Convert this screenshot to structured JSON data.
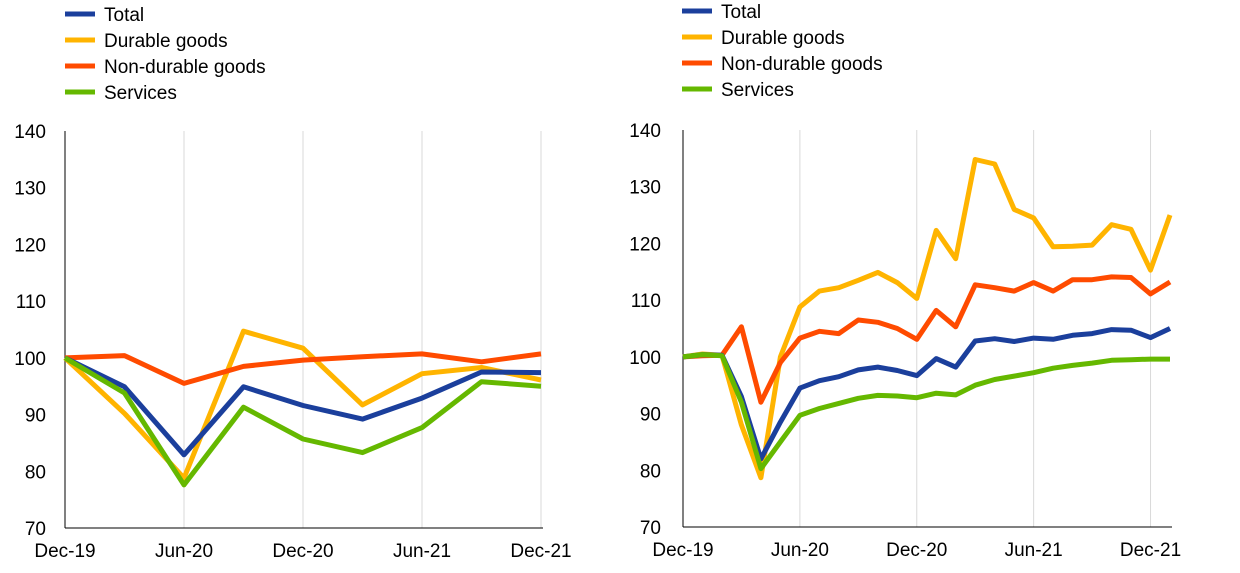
{
  "colors": {
    "total": "#1b3f9c",
    "durable": "#ffb400",
    "nondurable": "#ff4b00",
    "services": "#65b800"
  },
  "chart_data": [
    {
      "type": "line",
      "title": "",
      "xlabel": "",
      "ylabel": "",
      "ylim": [
        70,
        140
      ],
      "yticks": [
        70,
        80,
        90,
        100,
        110,
        120,
        130,
        140
      ],
      "xtick_labels": [
        "Dec-19",
        "Jun-20",
        "Dec-20",
        "Jun-21",
        "Dec-21"
      ],
      "x": [
        "Dec-19",
        "Mar-20",
        "Jun-20",
        "Sep-20",
        "Dec-20",
        "Mar-21",
        "Jun-21",
        "Sep-21",
        "Dec-21"
      ],
      "grid": "vertical",
      "legend": "top-left",
      "series": [
        {
          "key": "total",
          "name": "Total",
          "values": [
            100,
            94.9,
            82.9,
            94.9,
            91.6,
            89.2,
            92.9,
            97.5,
            97.4
          ]
        },
        {
          "key": "durable",
          "name": "Durable goods",
          "values": [
            100,
            90.2,
            78.8,
            104.7,
            101.7,
            91.7,
            97.2,
            98.3,
            96.1
          ]
        },
        {
          "key": "nondurable",
          "name": "Non-durable goods",
          "values": [
            100,
            100.4,
            95.5,
            98.5,
            99.6,
            100.2,
            100.7,
            99.3,
            100.7
          ]
        },
        {
          "key": "services",
          "name": "Services",
          "values": [
            100,
            93.8,
            77.6,
            91.3,
            85.7,
            83.3,
            87.7,
            95.8,
            95.0
          ]
        }
      ]
    },
    {
      "type": "line",
      "title": "",
      "xlabel": "",
      "ylabel": "",
      "ylim": [
        70,
        140
      ],
      "yticks": [
        70,
        80,
        90,
        100,
        110,
        120,
        130,
        140
      ],
      "xtick_labels": [
        "Dec-19",
        "Jun-20",
        "Dec-20",
        "Jun-21",
        "Dec-21"
      ],
      "x": [
        "Dec-19",
        "Jan-20",
        "Feb-20",
        "Mar-20",
        "Apr-20",
        "May-20",
        "Jun-20",
        "Jul-20",
        "Aug-20",
        "Sep-20",
        "Oct-20",
        "Nov-20",
        "Dec-20",
        "Jan-21",
        "Feb-21",
        "Mar-21",
        "Apr-21",
        "May-21",
        "Jun-21",
        "Jul-21",
        "Aug-21",
        "Sep-21",
        "Oct-21",
        "Nov-21",
        "Dec-21",
        "Jan-22"
      ],
      "grid": "vertical",
      "legend": "top-left",
      "series": [
        {
          "key": "total",
          "name": "Total",
          "values": [
            100,
            100.4,
            100.3,
            93,
            82,
            88.5,
            94.5,
            95.8,
            96.5,
            97.7,
            98.2,
            97.6,
            96.7,
            99.7,
            98.2,
            102.8,
            103.2,
            102.7,
            103.3,
            103.1,
            103.8,
            104.1,
            104.8,
            104.7,
            103.4,
            105
          ]
        },
        {
          "key": "durable",
          "name": "Durable goods",
          "values": [
            100,
            100.5,
            100.3,
            88,
            78.7,
            100,
            108.8,
            111.6,
            112.2,
            113.5,
            114.9,
            113.1,
            110.3,
            122.3,
            117.3,
            134.8,
            134,
            126,
            124.5,
            119.4,
            119.5,
            119.7,
            123.3,
            122.5,
            115.3,
            125
          ]
        },
        {
          "key": "nondurable",
          "name": "Non-durable goods",
          "values": [
            100,
            100.2,
            100.3,
            105.3,
            92,
            99,
            103.3,
            104.5,
            104.1,
            106.5,
            106.1,
            105,
            103.1,
            108.2,
            105.3,
            112.7,
            112.2,
            111.6,
            113.1,
            111.6,
            113.6,
            113.6,
            114.1,
            114,
            111.1,
            113.2
          ]
        },
        {
          "key": "services",
          "name": "Services",
          "values": [
            100,
            100.4,
            100.2,
            92,
            80.3,
            85,
            89.7,
            90.9,
            91.8,
            92.7,
            93.2,
            93.1,
            92.8,
            93.6,
            93.3,
            95,
            96,
            96.6,
            97.2,
            98,
            98.5,
            98.9,
            99.4,
            99.5,
            99.6,
            99.6
          ]
        }
      ]
    }
  ]
}
